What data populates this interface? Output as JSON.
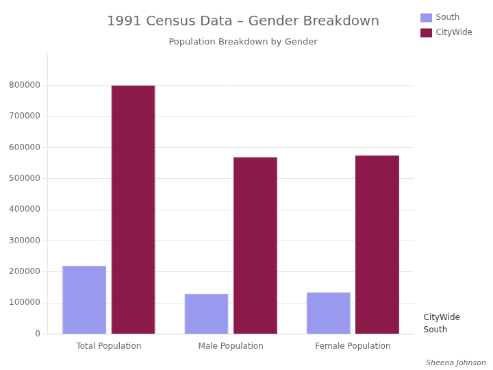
{
  "chart_data": {
    "type": "bar",
    "title": "1991 Census Data – Gender Breakdown",
    "subtitle": "Population Breakdown by Gender",
    "author": "Sheena Johnson",
    "categories": [
      "Total Population",
      "Male Population",
      "Female Population"
    ],
    "series": [
      {
        "name": "South",
        "color": "#9999ee",
        "values": [
          220000,
          130000,
          135000
        ]
      },
      {
        "name": "CityWide",
        "color": "#8b1a4a",
        "values": [
          800000,
          570000,
          575000
        ]
      }
    ],
    "ylim": [
      0,
      900000
    ],
    "yticks": [
      0,
      100000,
      200000,
      300000,
      400000,
      500000,
      600000,
      700000,
      800000
    ],
    "grid": true,
    "legend": "upper right",
    "annotations": [
      {
        "text": "CityWide"
      },
      {
        "text": "South"
      }
    ]
  }
}
